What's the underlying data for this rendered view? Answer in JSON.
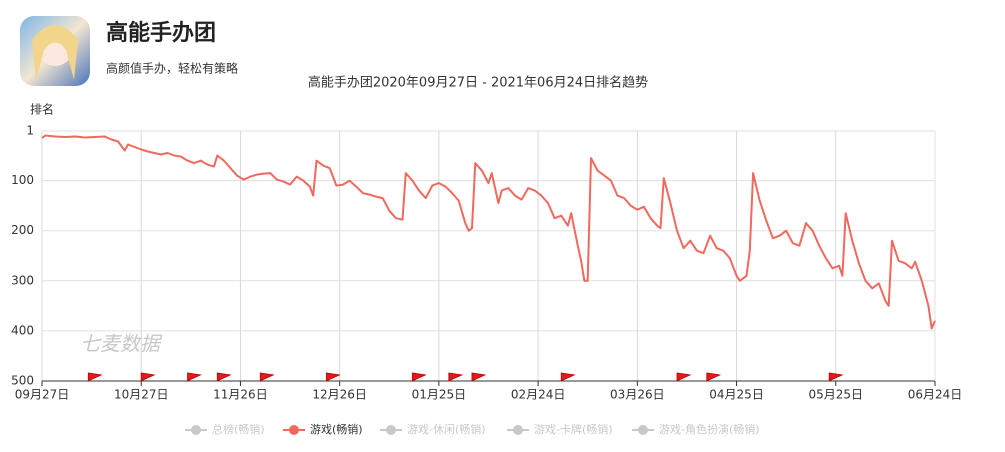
{
  "app": {
    "name": "高能手办团",
    "subtitle": "高颜值手办，轻松有策略"
  },
  "chart_data": {
    "type": "line",
    "title": "高能手办团2020年09月27日 - 2021年06月24日排名趋势",
    "y_label": "排名",
    "watermark": "七麦数据",
    "xlim": [
      0,
      270
    ],
    "xticks": [
      {
        "value": 0,
        "label": "09月27日"
      },
      {
        "value": 30,
        "label": "10月27日"
      },
      {
        "value": 60,
        "label": "11月26日"
      },
      {
        "value": 90,
        "label": "12月26日"
      },
      {
        "value": 120,
        "label": "01月25日"
      },
      {
        "value": 150,
        "label": "02月24日"
      },
      {
        "value": 180,
        "label": "03月26日"
      },
      {
        "value": 210,
        "label": "04月25日"
      },
      {
        "value": 240,
        "label": "05月25日"
      },
      {
        "value": 270,
        "label": "06月24日"
      }
    ],
    "ylim": [
      1,
      500
    ],
    "y_reversed": true,
    "yticks": [
      1,
      100,
      200,
      300,
      400,
      500
    ],
    "grid": true,
    "event_flags": [
      14,
      30,
      44,
      53,
      66,
      86,
      112,
      123,
      130,
      157,
      192,
      201,
      238
    ],
    "x": [
      0,
      1,
      4,
      7,
      10,
      13,
      16,
      19,
      21,
      23,
      25,
      26,
      28,
      30,
      32,
      34,
      36,
      38,
      40,
      42,
      44,
      46,
      48,
      50,
      52,
      53,
      55,
      57,
      59,
      61,
      63,
      65,
      67,
      69,
      71,
      73,
      75,
      77,
      79,
      81,
      82,
      83,
      85,
      87,
      89,
      91,
      93,
      95,
      97,
      99,
      101,
      103,
      105,
      107,
      109,
      110,
      112,
      114,
      116,
      118,
      120,
      122,
      124,
      126,
      128,
      129,
      130,
      131,
      133,
      135,
      136,
      138,
      139,
      141,
      143,
      145,
      147,
      149,
      151,
      153,
      155,
      157,
      159,
      160,
      162,
      163,
      164,
      165,
      166,
      168,
      170,
      172,
      174,
      176,
      178,
      180,
      182,
      184,
      186,
      187,
      188,
      190,
      192,
      194,
      196,
      198,
      200,
      202,
      204,
      206,
      208,
      210,
      211,
      213,
      214,
      215,
      217,
      219,
      221,
      223,
      225,
      227,
      229,
      231,
      233,
      235,
      237,
      239,
      241,
      242,
      243,
      245,
      247,
      249,
      251,
      253,
      255,
      256,
      257,
      259,
      261,
      263,
      264,
      266,
      268,
      269,
      270
    ],
    "series": [
      {
        "name": "总榜(畅销)",
        "color": "#c8c8c8",
        "visible": false
      },
      {
        "name": "游戏(畅销)",
        "color": "#f0695e",
        "visible": true,
        "values": [
          15,
          10,
          12,
          13,
          12,
          14,
          13,
          12,
          18,
          22,
          40,
          28,
          33,
          38,
          42,
          45,
          48,
          45,
          50,
          52,
          60,
          65,
          60,
          68,
          72,
          50,
          60,
          75,
          90,
          98,
          92,
          88,
          86,
          85,
          98,
          102,
          108,
          92,
          100,
          112,
          130,
          60,
          70,
          75,
          110,
          108,
          100,
          112,
          125,
          128,
          132,
          135,
          160,
          175,
          178,
          85,
          100,
          120,
          135,
          110,
          105,
          112,
          125,
          140,
          185,
          200,
          195,
          65,
          80,
          105,
          85,
          145,
          120,
          115,
          130,
          138,
          115,
          120,
          130,
          145,
          175,
          170,
          190,
          165,
          230,
          260,
          300,
          300,
          55,
          80,
          90,
          100,
          130,
          135,
          150,
          158,
          152,
          175,
          190,
          195,
          95,
          145,
          200,
          235,
          220,
          240,
          245,
          210,
          235,
          240,
          255,
          290,
          300,
          290,
          240,
          85,
          140,
          180,
          215,
          210,
          200,
          225,
          230,
          185,
          200,
          230,
          255,
          275,
          270,
          290,
          165,
          220,
          265,
          300,
          315,
          305,
          340,
          350,
          220,
          260,
          265,
          275,
          262,
          300,
          350,
          395,
          380
        ]
      },
      {
        "name": "游戏-休闲(畅销)",
        "color": "#c8c8c8",
        "visible": false
      },
      {
        "name": "游戏-卡牌(畅销)",
        "color": "#c8c8c8",
        "visible": false
      },
      {
        "name": "游戏-角色扮演(畅销)",
        "color": "#c8c8c8",
        "visible": false
      }
    ]
  }
}
